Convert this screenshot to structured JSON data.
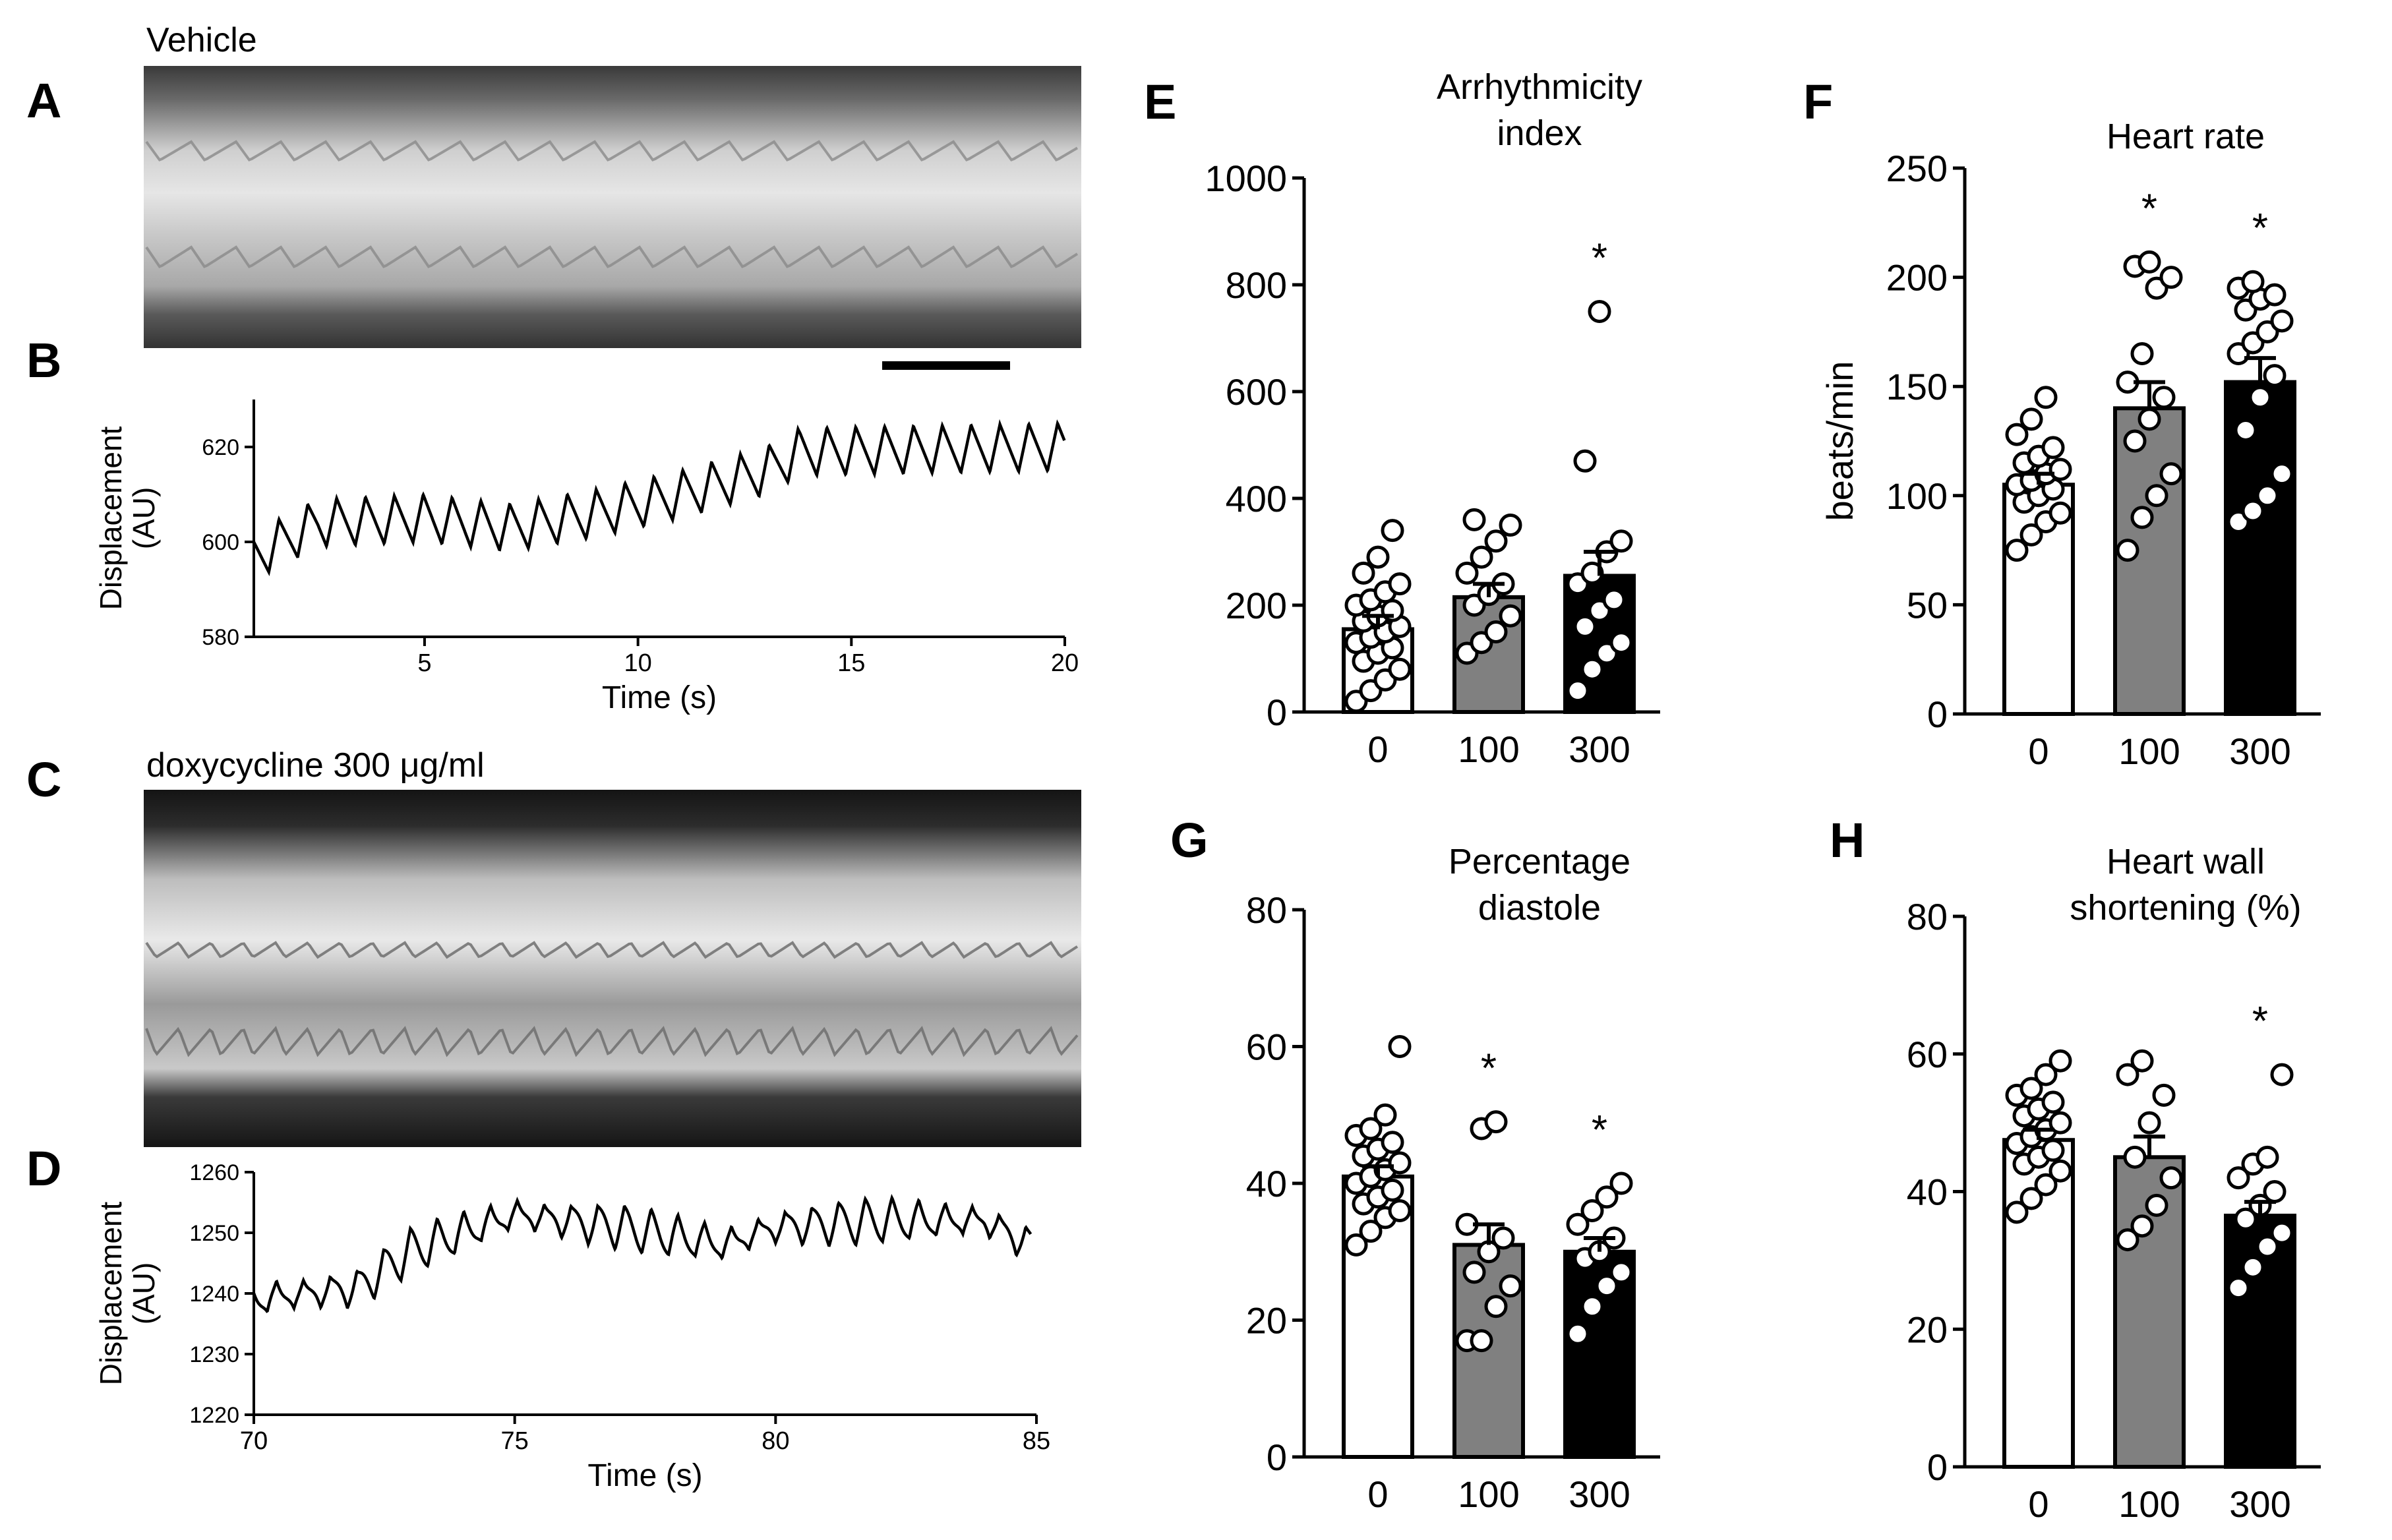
{
  "panels": {
    "A": {
      "letter": "A",
      "label": "Vehicle"
    },
    "B": {
      "letter": "B"
    },
    "C": {
      "letter": "C",
      "label": "doxycycline 300 μg/ml"
    },
    "D": {
      "letter": "D"
    },
    "E": {
      "letter": "E"
    },
    "F": {
      "letter": "F"
    },
    "G": {
      "letter": "G"
    },
    "H": {
      "letter": "H"
    }
  },
  "chart_data": [
    {
      "id": "B",
      "type": "line",
      "title": "",
      "xlabel": "Time (s)",
      "ylabel": "Displacement (AU)",
      "ylabel_lines": [
        "Displacement",
        "(AU)"
      ],
      "xlim": [
        1,
        20
      ],
      "ylim": [
        580,
        630
      ],
      "xticks": [
        5,
        10,
        15,
        20
      ],
      "yticks": [
        580,
        600,
        620
      ],
      "series": [
        {
          "name": "vehicle trace",
          "color": "#000000",
          "baseline_pts": [
            [
              1,
              597
            ],
            [
              2.5,
              604
            ],
            [
              5,
              605
            ],
            [
              7,
              603
            ],
            [
              9,
              606
            ],
            [
              11,
              610
            ],
            [
              13,
              615
            ],
            [
              13.8,
              619
            ],
            [
              20,
              620
            ]
          ],
          "oscillation": {
            "frequency_hz": 1.48,
            "amplitude": 5
          }
        }
      ]
    },
    {
      "id": "D",
      "type": "line",
      "title": "",
      "xlabel": "Time (s)",
      "ylabel": "Displacement (AU)",
      "ylabel_lines": [
        "Displacement",
        "(AU)"
      ],
      "xlim": [
        70,
        85
      ],
      "ylim": [
        1220,
        1260
      ],
      "xticks": [
        70,
        75,
        80,
        85
      ],
      "yticks": [
        1220,
        1230,
        1240,
        1250,
        1260
      ],
      "series": [
        {
          "name": "doxycycline trace",
          "color": "#000000",
          "baseline_pts": [
            [
              70,
              1239
            ],
            [
              72,
              1241
            ],
            [
              73,
              1247
            ],
            [
              75,
              1253
            ],
            [
              77,
              1251
            ],
            [
              79,
              1248
            ],
            [
              80,
              1251
            ],
            [
              82,
              1252
            ],
            [
              84,
              1252
            ],
            [
              84.9,
              1248
            ]
          ],
          "oscillation": {
            "frequency_hz": 1.95,
            "amplitude": 3
          }
        }
      ]
    },
    {
      "id": "E",
      "type": "bar",
      "title_lines": [
        "Arrhythmicity",
        "index"
      ],
      "title": "Arrhythmicity index",
      "categories": [
        "0",
        "100",
        "300"
      ],
      "ylim": [
        0,
        1000
      ],
      "yticks": [
        0,
        200,
        400,
        600,
        800,
        1000
      ],
      "values": [
        155,
        215,
        255
      ],
      "sem": [
        25,
        25,
        45
      ],
      "significance": [
        "",
        "",
        "*"
      ],
      "bar_colors": [
        "#ffffff",
        "#808080",
        "#000000"
      ],
      "points": [
        [
          20,
          40,
          60,
          80,
          95,
          110,
          120,
          130,
          140,
          150,
          160,
          170,
          180,
          190,
          200,
          210,
          225,
          240,
          260,
          290,
          340
        ],
        [
          110,
          130,
          150,
          180,
          200,
          220,
          240,
          260,
          290,
          320,
          350,
          360
        ],
        [
          40,
          80,
          110,
          130,
          160,
          190,
          210,
          240,
          260,
          300,
          320,
          470,
          750
        ]
      ]
    },
    {
      "id": "F",
      "type": "bar",
      "title": "Heart rate",
      "title_lines": [
        "Heart rate"
      ],
      "ylabel": "beats/min",
      "categories": [
        "0",
        "100",
        "300"
      ],
      "ylim": [
        0,
        250
      ],
      "yticks": [
        0,
        50,
        100,
        150,
        200,
        250
      ],
      "values": [
        105,
        140,
        152
      ],
      "sem": [
        5,
        12,
        11
      ],
      "significance": [
        "",
        "*",
        "*"
      ],
      "bar_colors": [
        "#ffffff",
        "#808080",
        "#000000"
      ],
      "points": [
        [
          75,
          82,
          88,
          92,
          97,
          100,
          103,
          105,
          107,
          110,
          112,
          115,
          118,
          122,
          128,
          135,
          145
        ],
        [
          75,
          90,
          100,
          110,
          125,
          135,
          145,
          152,
          165,
          195,
          200,
          205,
          207
        ],
        [
          88,
          93,
          100,
          110,
          130,
          145,
          155,
          165,
          170,
          175,
          180,
          185,
          190,
          192,
          195,
          198
        ]
      ]
    },
    {
      "id": "G",
      "type": "bar",
      "title": "Percentage diastole",
      "title_lines": [
        "Percentage",
        "diastole"
      ],
      "categories": [
        "0",
        "100",
        "300"
      ],
      "ylim": [
        0,
        80
      ],
      "yticks": [
        0,
        20,
        40,
        60,
        80
      ],
      "values": [
        41,
        31,
        30
      ],
      "sem": [
        1.5,
        3,
        2
      ],
      "significance": [
        "",
        "*",
        "*"
      ],
      "bar_colors": [
        "#ffffff",
        "#808080",
        "#000000"
      ],
      "points": [
        [
          31,
          33,
          35,
          36,
          37,
          38,
          39,
          40,
          41,
          42,
          43,
          44,
          45,
          46,
          47,
          48,
          50,
          60
        ],
        [
          17,
          17,
          22,
          25,
          27,
          30,
          32,
          34,
          48,
          49
        ],
        [
          18,
          22,
          25,
          27,
          29,
          30,
          32,
          34,
          36,
          38,
          40
        ]
      ]
    },
    {
      "id": "H",
      "type": "bar",
      "title": "Heart wall shortening (%)",
      "title_lines": [
        "Heart wall",
        "shortening (%)"
      ],
      "categories": [
        "0",
        "100",
        "300"
      ],
      "ylim": [
        0,
        80
      ],
      "yticks": [
        0,
        20,
        40,
        60,
        80
      ],
      "values": [
        47.5,
        45,
        36.5
      ],
      "sem": [
        1.5,
        3,
        2
      ],
      "significance": [
        "",
        "",
        "*"
      ],
      "bar_colors": [
        "#ffffff",
        "#808080",
        "#000000"
      ],
      "points": [
        [
          37,
          39,
          41,
          43,
          44,
          45,
          46,
          47,
          48,
          49,
          50,
          51,
          52,
          53,
          54,
          55,
          57,
          59
        ],
        [
          33,
          35,
          38,
          42,
          45,
          50,
          54,
          57,
          59
        ],
        [
          26,
          29,
          32,
          34,
          36,
          38,
          40,
          42,
          44,
          45,
          57
        ]
      ]
    }
  ]
}
